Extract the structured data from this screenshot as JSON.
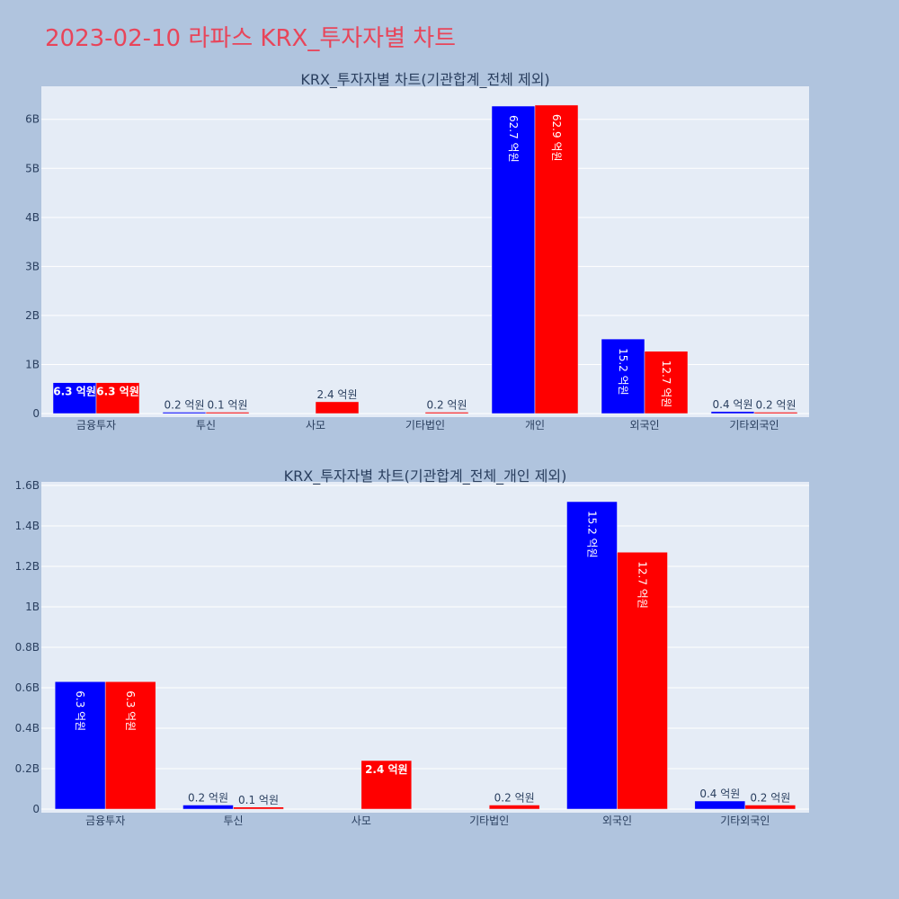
{
  "header": {
    "title": "2023-02-10 라파스 KRX_투자자별 차트"
  },
  "colors": {
    "background": "#b0c4de",
    "plot_bg": "#e5ecf6",
    "series_a": "#0000ff",
    "series_b": "#ff0000",
    "title": "#e8455a"
  },
  "chart_data": [
    {
      "type": "bar",
      "title": "KRX_투자자별 차트(기관합계_전체 제외)",
      "categories": [
        "금융투자",
        "투신",
        "사모",
        "기타법인",
        "개인",
        "외국인",
        "기타외국인"
      ],
      "series": [
        {
          "color": "#0000ff",
          "values": [
            630000000,
            20000000,
            null,
            null,
            6270000000,
            1520000000,
            40000000
          ],
          "labels": [
            "6.3 억원",
            "0.2 억원",
            "",
            "",
            "62.7 억원",
            "15.2 억원",
            "0.4 억원"
          ]
        },
        {
          "color": "#ff0000",
          "values": [
            630000000,
            10000000,
            240000000,
            20000000,
            6290000000,
            1270000000,
            20000000
          ],
          "labels": [
            "6.3 억원",
            "0.1 억원",
            "2.4 억원",
            "0.2 억원",
            "62.9 억원",
            "12.7 억원",
            "0.2 억원"
          ]
        }
      ],
      "ylim": [
        0,
        6600000000
      ],
      "yticks": [
        0,
        1000000000,
        2000000000,
        3000000000,
        4000000000,
        5000000000,
        6000000000
      ],
      "ytick_labels": [
        "0",
        "1B",
        "2B",
        "3B",
        "4B",
        "5B",
        "6B"
      ],
      "grid": true
    },
    {
      "type": "bar",
      "title": "KRX_투자자별 차트(기관합계_전체_개인 제외)",
      "categories": [
        "금융투자",
        "투신",
        "사모",
        "기타법인",
        "외국인",
        "기타외국인"
      ],
      "series": [
        {
          "color": "#0000ff",
          "values": [
            630000000,
            20000000,
            null,
            null,
            1520000000,
            40000000
          ],
          "labels": [
            "6.3 억원",
            "0.2 억원",
            "",
            "",
            "15.2 억원",
            "0.4 억원"
          ]
        },
        {
          "color": "#ff0000",
          "values": [
            630000000,
            10000000,
            240000000,
            20000000,
            1270000000,
            20000000
          ],
          "labels": [
            "6.3 억원",
            "0.1 억원",
            "2.4 억원",
            "0.2 억원",
            "12.7 억원",
            "0.2 억원"
          ]
        }
      ],
      "ylim": [
        0,
        1600000000
      ],
      "yticks": [
        0,
        200000000,
        400000000,
        600000000,
        800000000,
        1000000000,
        1200000000,
        1400000000,
        1600000000
      ],
      "ytick_labels": [
        "0",
        "0.2B",
        "0.4B",
        "0.6B",
        "0.8B",
        "1B",
        "1.2B",
        "1.4B",
        "1.6B"
      ],
      "grid": true
    }
  ]
}
